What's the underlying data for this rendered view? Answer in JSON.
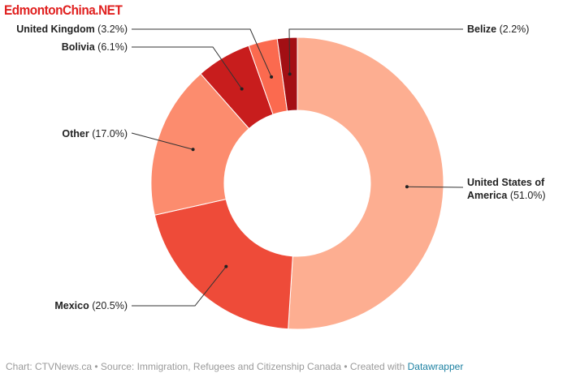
{
  "watermark": "EdmontonChina.NET",
  "chart_data": {
    "type": "pie",
    "donut": true,
    "slices": [
      {
        "label": "United States of America",
        "value": 51.0,
        "value_text": "(51.0%)",
        "color": "#fdae91"
      },
      {
        "label": "Mexico",
        "value": 20.5,
        "value_text": "(20.5%)",
        "color": "#ee4b39"
      },
      {
        "label": "Other",
        "value": 17.0,
        "value_text": "(17.0%)",
        "color": "#fc8c6e"
      },
      {
        "label": "Bolivia",
        "value": 6.1,
        "value_text": "(6.1%)",
        "color": "#c81d1d"
      },
      {
        "label": "United Kingdom",
        "value": 3.2,
        "value_text": "(3.2%)",
        "color": "#fb6a4f"
      },
      {
        "label": "Belize",
        "value": 2.2,
        "value_text": "(2.2%)",
        "color": "#a30f14"
      }
    ]
  },
  "footer": {
    "prefix": "Chart: CTVNews.ca • Source: Immigration, Refugees and Citizenship Canada • Created with ",
    "link": "Datawrapper"
  }
}
